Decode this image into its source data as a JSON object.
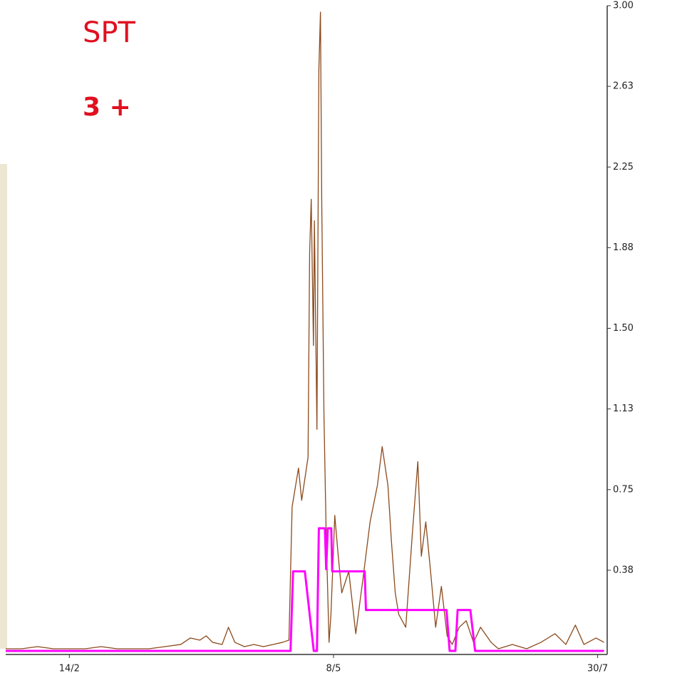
{
  "chart_data": {
    "type": "line",
    "title": "SPT",
    "subtitle": "3 +",
    "xlim": [
      0,
      189
    ],
    "xticks": [
      {
        "value": 20,
        "label": "14/2"
      },
      {
        "value": 103,
        "label": "8/5"
      },
      {
        "value": 186,
        "label": "30/7"
      }
    ],
    "ylim": [
      0,
      3
    ],
    "yticks": [
      {
        "value": 0.375,
        "label": "0.38"
      },
      {
        "value": 0.75,
        "label": "0.75"
      },
      {
        "value": 1.125,
        "label": "1.13"
      },
      {
        "value": 1.5,
        "label": "1.50"
      },
      {
        "value": 1.875,
        "label": "1.88"
      },
      {
        "value": 2.25,
        "label": "2.25"
      },
      {
        "value": 2.625,
        "label": "2.63"
      },
      {
        "value": 3,
        "label": "3.00"
      }
    ],
    "series": [
      {
        "color": "#8b4a1c",
        "x": [
          0,
          5,
          10,
          15,
          20,
          25,
          30,
          35,
          40,
          45,
          50,
          55,
          58,
          61,
          63,
          65,
          68,
          70,
          72,
          75,
          78,
          81,
          84,
          87,
          89,
          90,
          92,
          93,
          95,
          95.5,
          96,
          96.7,
          97,
          97.8,
          98.4,
          98.9,
          99.3,
          100,
          100.7,
          101.6,
          102.2,
          103.4,
          104.5,
          105.6,
          107.8,
          110,
          112.3,
          114.5,
          116.8,
          118.3,
          120.1,
          121.2,
          122.4,
          123.5,
          125.7,
          127.9,
          129.5,
          130.6,
          132,
          133.5,
          135.1,
          136.9,
          138.7,
          140.3,
          142.5,
          144.7,
          147,
          149.2,
          152.5,
          154.8,
          159.2,
          163.7,
          168.2,
          172.6,
          176,
          179,
          181.7,
          185.5,
          188
        ],
        "values": [
          0.01,
          0.01,
          0.02,
          0.01,
          0.01,
          0.01,
          0.02,
          0.01,
          0.01,
          0.01,
          0.02,
          0.03,
          0.06,
          0.05,
          0.07,
          0.04,
          0.03,
          0.11,
          0.04,
          0.02,
          0.03,
          0.02,
          0.03,
          0.04,
          0.05,
          0.67,
          0.85,
          0.7,
          0.9,
          1.85,
          2.1,
          1.42,
          2.0,
          1.03,
          2.7,
          2.97,
          2.1,
          1.1,
          0.54,
          0.04,
          0.17,
          0.63,
          0.44,
          0.27,
          0.37,
          0.08,
          0.34,
          0.6,
          0.77,
          0.95,
          0.77,
          0.51,
          0.27,
          0.17,
          0.11,
          0.57,
          0.88,
          0.44,
          0.6,
          0.37,
          0.11,
          0.3,
          0.07,
          0.03,
          0.11,
          0.14,
          0.04,
          0.11,
          0.04,
          0.01,
          0.03,
          0.01,
          0.04,
          0.08,
          0.03,
          0.12,
          0.03,
          0.06,
          0.04
        ]
      },
      {
        "color": "#ff00ff",
        "x": [
          0,
          89.5,
          90.3,
          94,
          96.8,
          97.8,
          98.4,
          100.3,
          100.7,
          101.2,
          102.3,
          102.6,
          112.8,
          113.2,
          138.5,
          139.5,
          141.3,
          142,
          146,
          147.5,
          188
        ],
        "values": [
          0,
          0,
          0.37,
          0.37,
          0,
          0,
          0.57,
          0.57,
          0.38,
          0.57,
          0.57,
          0.37,
          0.37,
          0.19,
          0.19,
          0,
          0,
          0.19,
          0.19,
          0,
          0
        ]
      }
    ]
  }
}
